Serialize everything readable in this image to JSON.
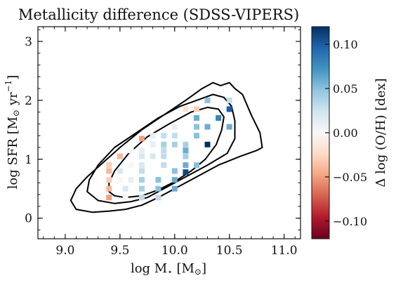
{
  "chart_data": {
    "type": "scatter",
    "title": "Metallicity difference (SDSS-VIPERS)",
    "xlabel_parts": [
      "log M",
      "⋆",
      " [M",
      "⊙",
      "]"
    ],
    "ylabel_parts": [
      "log SFR [M",
      "⊙",
      " yr",
      "−1",
      "]"
    ],
    "xlim": [
      8.75,
      11.15
    ],
    "ylim": [
      -0.35,
      3.25
    ],
    "xticks": [
      "9.0",
      "9.5",
      "10.0",
      "10.5",
      "11.0"
    ],
    "xtick_values": [
      9.0,
      9.5,
      10.0,
      10.5,
      11.0
    ],
    "yticks": [
      "0",
      "1",
      "2",
      "3"
    ],
    "ytick_values": [
      0,
      1,
      2,
      3
    ],
    "colorbar": {
      "label": "Δ log (O/H) [dex]",
      "range": [
        -0.12,
        0.12
      ],
      "ticks": [
        "−0.10",
        "−0.05",
        "0.00",
        "0.05",
        "0.10"
      ],
      "tick_values": [
        -0.1,
        -0.05,
        0.0,
        0.05,
        0.1
      ],
      "colormap": "RdBu",
      "stops": [
        "#67001f",
        "#b2182b",
        "#d6604d",
        "#f4a582",
        "#fddbc7",
        "#f7f7f7",
        "#d1e5f0",
        "#92c5de",
        "#4393c3",
        "#2166ac",
        "#053061"
      ]
    },
    "points": [
      {
        "x": 10.3,
        "y": 2.0,
        "v": 0.05
      },
      {
        "x": 10.5,
        "y": 2.0,
        "v": 0.03
      },
      {
        "x": 10.1,
        "y": 1.85,
        "v": -0.02
      },
      {
        "x": 10.2,
        "y": 1.85,
        "v": -0.03
      },
      {
        "x": 10.5,
        "y": 1.85,
        "v": 0.1
      },
      {
        "x": 10.2,
        "y": 1.7,
        "v": 0.06
      },
      {
        "x": 10.4,
        "y": 1.7,
        "v": 0.08
      },
      {
        "x": 10.0,
        "y": 1.55,
        "v": 0.01
      },
      {
        "x": 10.2,
        "y": 1.55,
        "v": 0.05
      },
      {
        "x": 10.3,
        "y": 1.55,
        "v": 0.06
      },
      {
        "x": 10.5,
        "y": 1.55,
        "v": 0.06
      },
      {
        "x": 9.8,
        "y": 1.4,
        "v": 0.01
      },
      {
        "x": 9.9,
        "y": 1.4,
        "v": 0.03
      },
      {
        "x": 10.0,
        "y": 1.4,
        "v": 0.03
      },
      {
        "x": 10.2,
        "y": 1.4,
        "v": 0.05
      },
      {
        "x": 9.7,
        "y": 1.35,
        "v": -0.05
      },
      {
        "x": 9.8,
        "y": 1.25,
        "v": 0.01
      },
      {
        "x": 9.9,
        "y": 1.25,
        "v": 0.04
      },
      {
        "x": 10.0,
        "y": 1.25,
        "v": 0.04
      },
      {
        "x": 10.1,
        "y": 1.25,
        "v": 0.04
      },
      {
        "x": 10.3,
        "y": 1.25,
        "v": 0.12
      },
      {
        "x": 9.6,
        "y": 1.15,
        "v": 0.0
      },
      {
        "x": 9.7,
        "y": 1.15,
        "v": 0.01
      },
      {
        "x": 9.9,
        "y": 1.15,
        "v": 0.03
      },
      {
        "x": 10.1,
        "y": 1.15,
        "v": 0.06
      },
      {
        "x": 9.5,
        "y": 1.05,
        "v": -0.04
      },
      {
        "x": 9.7,
        "y": 1.05,
        "v": 0.02
      },
      {
        "x": 9.8,
        "y": 1.05,
        "v": 0.02
      },
      {
        "x": 9.9,
        "y": 1.05,
        "v": 0.03
      },
      {
        "x": 10.1,
        "y": 1.05,
        "v": 0.04
      },
      {
        "x": 9.4,
        "y": 0.9,
        "v": -0.03
      },
      {
        "x": 9.6,
        "y": 0.9,
        "v": 0.0
      },
      {
        "x": 9.7,
        "y": 0.9,
        "v": 0.02
      },
      {
        "x": 9.9,
        "y": 0.9,
        "v": 0.03
      },
      {
        "x": 10.1,
        "y": 0.9,
        "v": 0.06
      },
      {
        "x": 10.2,
        "y": 0.9,
        "v": 0.05
      },
      {
        "x": 9.4,
        "y": 0.8,
        "v": -0.04
      },
      {
        "x": 9.5,
        "y": 0.8,
        "v": 0.02
      },
      {
        "x": 9.7,
        "y": 0.8,
        "v": 0.03
      },
      {
        "x": 10.0,
        "y": 0.8,
        "v": 0.05
      },
      {
        "x": 10.1,
        "y": 0.78,
        "v": 0.11
      },
      {
        "x": 9.4,
        "y": 0.65,
        "v": -0.03
      },
      {
        "x": 9.5,
        "y": 0.65,
        "v": 0.0
      },
      {
        "x": 9.6,
        "y": 0.65,
        "v": 0.01
      },
      {
        "x": 9.7,
        "y": 0.65,
        "v": 0.04
      },
      {
        "x": 9.85,
        "y": 0.65,
        "v": 0.05
      },
      {
        "x": 10.0,
        "y": 0.65,
        "v": 0.06
      },
      {
        "x": 9.4,
        "y": 0.5,
        "v": -0.04
      },
      {
        "x": 9.55,
        "y": 0.5,
        "v": 0.02
      },
      {
        "x": 9.7,
        "y": 0.5,
        "v": 0.04
      },
      {
        "x": 9.85,
        "y": 0.5,
        "v": 0.05
      },
      {
        "x": 10.0,
        "y": 0.5,
        "v": 0.06
      },
      {
        "x": 9.4,
        "y": 0.35,
        "v": -0.05
      },
      {
        "x": 9.55,
        "y": 0.35,
        "v": 0.0
      },
      {
        "x": 9.7,
        "y": 0.35,
        "v": 0.03
      },
      {
        "x": 9.85,
        "y": 0.35,
        "v": 0.03
      }
    ],
    "contours": [
      [
        [
          9.05,
          0.3
        ],
        [
          9.1,
          0.15
        ],
        [
          9.25,
          0.1
        ],
        [
          9.4,
          0.12
        ],
        [
          9.55,
          0.15
        ],
        [
          9.7,
          0.22
        ],
        [
          9.85,
          0.35
        ],
        [
          10.0,
          0.5
        ],
        [
          10.2,
          0.7
        ],
        [
          10.4,
          0.9
        ],
        [
          10.6,
          1.05
        ],
        [
          10.75,
          1.15
        ],
        [
          10.8,
          1.2
        ],
        [
          10.78,
          1.45
        ],
        [
          10.7,
          1.75
        ],
        [
          10.62,
          2.1
        ],
        [
          10.55,
          2.2
        ],
        [
          10.5,
          2.3
        ],
        [
          10.42,
          2.25
        ],
        [
          10.35,
          2.3
        ],
        [
          10.25,
          2.2
        ],
        [
          10.1,
          2.0
        ],
        [
          9.9,
          1.75
        ],
        [
          9.7,
          1.5
        ],
        [
          9.5,
          1.2
        ],
        [
          9.35,
          0.95
        ],
        [
          9.2,
          0.7
        ],
        [
          9.1,
          0.5
        ],
        [
          9.05,
          0.3
        ]
      ],
      [
        [
          9.2,
          0.45
        ],
        [
          9.3,
          0.3
        ],
        [
          9.45,
          0.25
        ],
        [
          9.6,
          0.28
        ],
        [
          9.75,
          0.35
        ],
        [
          9.9,
          0.5
        ],
        [
          10.1,
          0.7
        ],
        [
          10.3,
          0.9
        ],
        [
          10.48,
          1.1
        ],
        [
          10.55,
          1.35
        ],
        [
          10.55,
          1.65
        ],
        [
          10.52,
          1.9
        ],
        [
          10.45,
          2.05
        ],
        [
          10.35,
          2.1
        ],
        [
          10.2,
          2.0
        ],
        [
          10.05,
          1.9
        ],
        [
          9.85,
          1.7
        ],
        [
          9.65,
          1.45
        ],
        [
          9.45,
          1.2
        ],
        [
          9.3,
          0.9
        ],
        [
          9.22,
          0.65
        ],
        [
          9.2,
          0.45
        ]
      ],
      [
        [
          9.4,
          0.45
        ],
        [
          9.45,
          0.38
        ],
        [
          9.55,
          0.35
        ],
        [
          9.7,
          0.38
        ],
        [
          9.85,
          0.48
        ],
        [
          10.0,
          0.62
        ],
        [
          10.15,
          0.8
        ],
        [
          10.28,
          1.0
        ],
        [
          10.38,
          1.25
        ],
        [
          10.43,
          1.5
        ],
        [
          10.45,
          1.72
        ],
        [
          10.4,
          1.85
        ],
        [
          10.3,
          1.88
        ],
        [
          10.15,
          1.8
        ],
        [
          9.95,
          1.6
        ],
        [
          9.75,
          1.38
        ],
        [
          9.58,
          1.1
        ],
        [
          9.45,
          0.8
        ],
        [
          9.4,
          0.6
        ],
        [
          9.4,
          0.45
        ]
      ]
    ]
  }
}
